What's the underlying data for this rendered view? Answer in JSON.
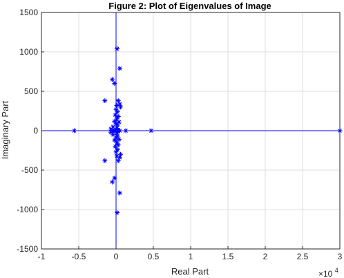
{
  "chart_data": {
    "type": "scatter",
    "title": "Figure 2: Plot of Eigenvalues of Image",
    "xlabel": "Real Part",
    "ylabel": "Imaginary Part",
    "x_multiplier_label": "×10",
    "x_multiplier_exponent": "4",
    "xlim": [
      -10000,
      30000
    ],
    "ylim": [
      -1500,
      1500
    ],
    "x_ticks": [
      -10000,
      -5000,
      0,
      5000,
      10000,
      15000,
      20000,
      25000,
      30000
    ],
    "x_tick_labels": [
      "-1",
      "-0.5",
      "0",
      "0.5",
      "1",
      "1.5",
      "2",
      "2.5",
      "3"
    ],
    "y_ticks": [
      -1500,
      -1000,
      -500,
      0,
      500,
      1000,
      1500
    ],
    "y_tick_labels": [
      "-1500",
      "-1000",
      "-500",
      "0",
      "500",
      "1000",
      "1500"
    ],
    "grid": true,
    "marker": "*",
    "colors": {
      "marker": "#0000ff",
      "reference_lines": "#0000ff",
      "grid": "#dcdcdc",
      "axes": "#262626"
    },
    "series": [
      {
        "points": [
          [
            30000,
            0
          ],
          [
            -5600,
            0
          ],
          [
            4700,
            0
          ],
          [
            1300,
            0
          ],
          [
            150,
            1040
          ],
          [
            150,
            -1040
          ],
          [
            500,
            790
          ],
          [
            500,
            -790
          ],
          [
            -500,
            650
          ],
          [
            -500,
            -650
          ],
          [
            -1500,
            380
          ],
          [
            -1500,
            -380
          ],
          [
            -200,
            600
          ],
          [
            -200,
            -600
          ],
          [
            300,
            380
          ],
          [
            300,
            -380
          ],
          [
            500,
            340
          ],
          [
            500,
            -340
          ],
          [
            600,
            300
          ],
          [
            600,
            -300
          ],
          [
            100,
            320
          ],
          [
            100,
            -320
          ],
          [
            0,
            270
          ],
          [
            0,
            -270
          ],
          [
            200,
            240
          ],
          [
            200,
            -240
          ],
          [
            -100,
            200
          ],
          [
            -100,
            -200
          ],
          [
            300,
            180
          ],
          [
            300,
            -180
          ],
          [
            100,
            150
          ],
          [
            100,
            -150
          ],
          [
            -200,
            120
          ],
          [
            -200,
            -120
          ],
          [
            400,
            110
          ],
          [
            400,
            -110
          ],
          [
            0,
            90
          ],
          [
            0,
            -90
          ],
          [
            200,
            70
          ],
          [
            200,
            -70
          ],
          [
            -400,
            50
          ],
          [
            -400,
            -50
          ],
          [
            -700,
            20
          ],
          [
            -700,
            -20
          ],
          [
            -500,
            0
          ],
          [
            -300,
            0
          ],
          [
            -150,
            0
          ],
          [
            0,
            0
          ],
          [
            150,
            0
          ],
          [
            300,
            0
          ],
          [
            500,
            0
          ],
          [
            100,
            30
          ],
          [
            100,
            -30
          ],
          [
            250,
            10
          ],
          [
            250,
            -10
          ]
        ]
      }
    ]
  }
}
